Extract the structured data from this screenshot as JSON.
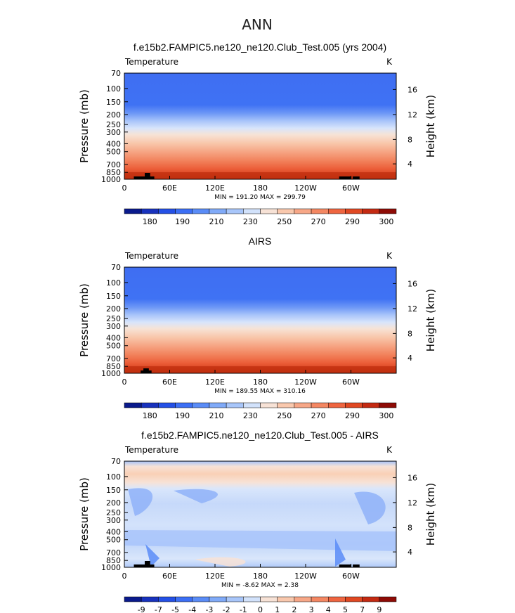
{
  "figure": {
    "title": "ANN"
  },
  "chart_data": [
    {
      "type": "heatmap",
      "title": "f.e15b2.FAMPIC5.ne120_ne120.Club_Test.005 (yrs 2004)",
      "variable": "Temperature",
      "units": "K",
      "ylabel": "Pressure (mb)",
      "ylabel_right": "Height (km)",
      "x_ticks": [
        "0",
        "60E",
        "120E",
        "180",
        "120W",
        "60W"
      ],
      "y_ticks": [
        "70",
        "100",
        "150",
        "200",
        "250",
        "300",
        "400",
        "500",
        "700",
        "850",
        "1000"
      ],
      "y_ticks_right": [
        "16",
        "12",
        "8",
        "4"
      ],
      "min_max_text": "MIN = 191.20   MAX = 299.79",
      "min": 191.2,
      "max": 299.79,
      "levels": [
        "180",
        "190",
        "210",
        "230",
        "250",
        "270",
        "290",
        "300"
      ],
      "colors": [
        "#0a1a8c",
        "#1832bd",
        "#2450e6",
        "#3c6ff5",
        "#5a8cf7",
        "#80aaf8",
        "#a8c6fa",
        "#d2e2fb",
        "#f7e2d6",
        "#f9c8ad",
        "#f7a787",
        "#f48762",
        "#ef6540",
        "#e04822",
        "#c42a12",
        "#8e0b06"
      ]
    },
    {
      "type": "heatmap",
      "title": "AIRS",
      "variable": "Temperature",
      "units": "K",
      "ylabel": "Pressure (mb)",
      "ylabel_right": "Height (km)",
      "x_ticks": [
        "0",
        "60E",
        "120E",
        "180",
        "120W",
        "60W"
      ],
      "y_ticks": [
        "70",
        "100",
        "150",
        "200",
        "250",
        "300",
        "400",
        "500",
        "700",
        "850",
        "1000"
      ],
      "y_ticks_right": [
        "16",
        "12",
        "8",
        "4"
      ],
      "min_max_text": "MIN = 189.55   MAX = 310.16",
      "min": 189.55,
      "max": 310.16,
      "levels": [
        "180",
        "190",
        "210",
        "230",
        "250",
        "270",
        "290",
        "300"
      ],
      "colors": [
        "#0a1a8c",
        "#1832bd",
        "#2450e6",
        "#3c6ff5",
        "#5a8cf7",
        "#80aaf8",
        "#a8c6fa",
        "#d2e2fb",
        "#f7e2d6",
        "#f9c8ad",
        "#f7a787",
        "#f48762",
        "#ef6540",
        "#e04822",
        "#c42a12",
        "#8e0b06"
      ]
    },
    {
      "type": "heatmap",
      "title": "f.e15b2.FAMPIC5.ne120_ne120.Club_Test.005 - AIRS",
      "variable": "Temperature",
      "units": "K",
      "ylabel": "Pressure (mb)",
      "ylabel_right": "Height (km)",
      "x_ticks": [
        "0",
        "60E",
        "120E",
        "180",
        "120W",
        "60W"
      ],
      "y_ticks": [
        "70",
        "100",
        "150",
        "200",
        "250",
        "300",
        "400",
        "500",
        "700",
        "850",
        "1000"
      ],
      "y_ticks_right": [
        "16",
        "12",
        "8",
        "4"
      ],
      "min_max_text": "MIN =  -8.62  MAX =   2.38",
      "min": -8.62,
      "max": 2.38,
      "levels": [
        "-9",
        "-7",
        "-5",
        "-4",
        "-3",
        "-2",
        "-1",
        "0",
        "1",
        "2",
        "3",
        "4",
        "5",
        "7",
        "9"
      ],
      "colors": [
        "#0a1a8c",
        "#1832bd",
        "#2450e6",
        "#3c6ff5",
        "#5a8cf7",
        "#80aaf8",
        "#a8c6fa",
        "#d2e2fb",
        "#f7e2d6",
        "#f9c8ad",
        "#f7a787",
        "#f48762",
        "#ef6540",
        "#e04822",
        "#c42a12",
        "#8e0b06"
      ]
    }
  ]
}
